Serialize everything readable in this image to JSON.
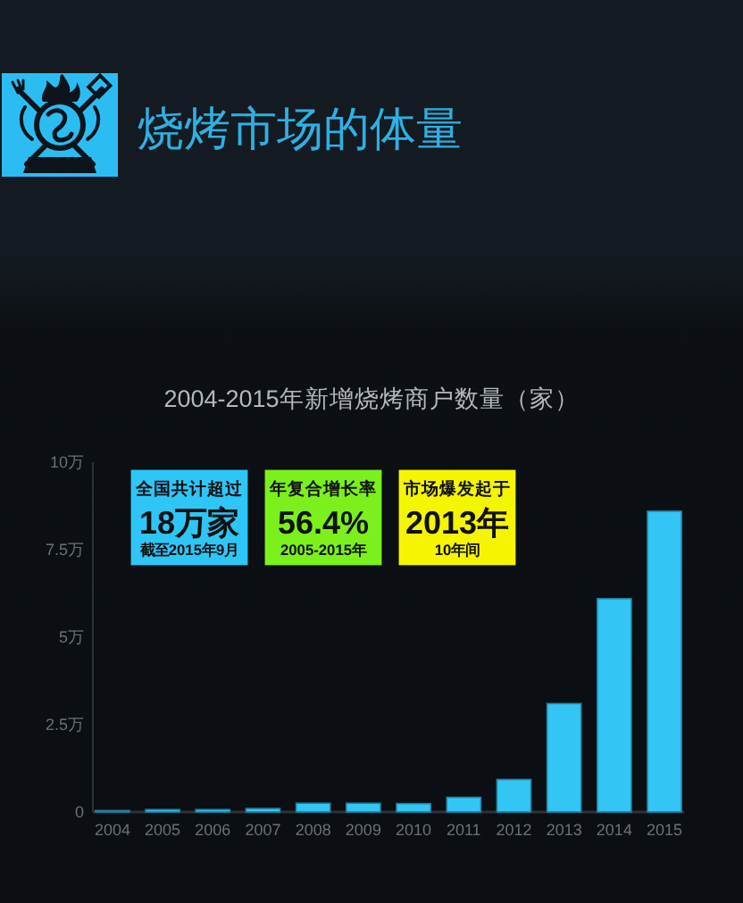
{
  "chart_data": {
    "type": "bar",
    "title": "烧烤市场的体量",
    "subtitle": "2004-2015年新增烧烤商户数量（家）",
    "categories": [
      "2004",
      "2005",
      "2006",
      "2007",
      "2008",
      "2009",
      "2010",
      "2011",
      "2012",
      "2013",
      "2014",
      "2015"
    ],
    "values": [
      0.04,
      0.07,
      0.07,
      0.1,
      0.25,
      0.25,
      0.24,
      0.42,
      0.93,
      3.1,
      6.1,
      8.6
    ],
    "color": "#33c5f3",
    "ylim": [
      0,
      10
    ],
    "yticks": [
      0,
      {
        "value": 2.5,
        "label": "2.5万"
      },
      {
        "value": 5,
        "label": "5万"
      },
      {
        "value": 7.5,
        "label": "7.5万"
      },
      {
        "value": 10,
        "label": "10万"
      }
    ],
    "annotations": [
      "全国共计超过",
      "18万家",
      "截至2015年9月",
      "年复合增长率",
      "56.4%",
      "2005-2015年",
      "市场爆发起于",
      "2013年",
      "10年间"
    ]
  }
}
